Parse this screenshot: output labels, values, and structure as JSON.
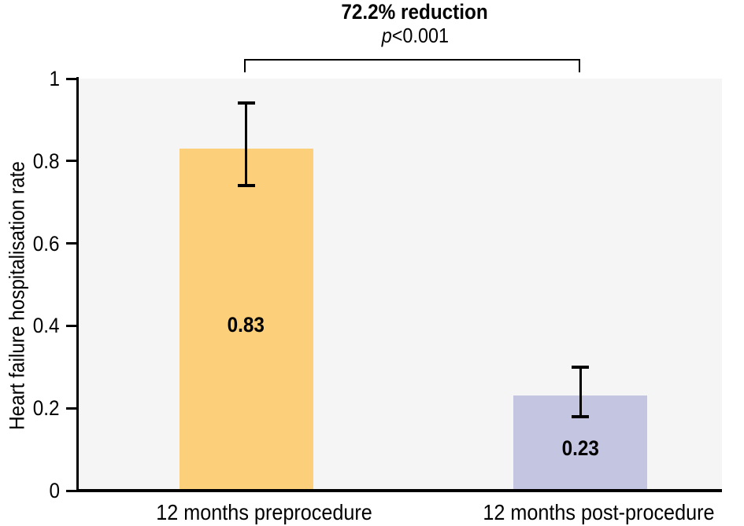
{
  "chart_data": {
    "type": "bar",
    "categories": [
      "12 months preprocedure",
      "12 months post-procedure"
    ],
    "values": [
      0.83,
      0.23
    ],
    "value_labels": [
      "0.83",
      "0.23"
    ],
    "error_low": [
      0.74,
      0.18
    ],
    "error_high": [
      0.94,
      0.3
    ],
    "bar_colors": [
      "#FCCF7B",
      "#C4C5E1"
    ],
    "ylabel": "Heart failure hospitalisation rate",
    "xlabel": "",
    "ylim": [
      0,
      1
    ],
    "ytick_values": [
      0,
      0.2,
      0.4,
      0.6,
      0.8,
      1
    ],
    "ytick_labels": [
      "0",
      "0.2",
      "0.4",
      "0.6",
      "0.8",
      "1"
    ],
    "annotation": {
      "title": "72.2% reduction",
      "p_italic": "p",
      "p_rest": "<0.001",
      "p_full": "p<0.001"
    },
    "plot_background": "#F5F5F5",
    "axis_color": "#000000",
    "error_bar_color": "#000000",
    "text_color": "#000000",
    "grid": false,
    "legend": false
  }
}
